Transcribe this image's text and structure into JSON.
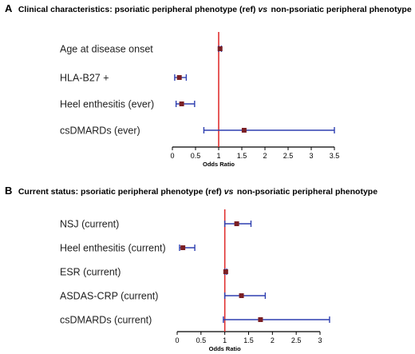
{
  "chart_data": [
    {
      "type": "forest",
      "panel_letter": "A",
      "title_prefix": "Clinical characteristics: psoriatic peripheral phenotype (ref) ",
      "title_vs": "vs",
      "title_suffix": " non-psoriatic peripheral phenotype",
      "xlabel": "Odds Ratio",
      "xlim": [
        0,
        3.5
      ],
      "ticks": [
        "0",
        "0.5",
        "1",
        "1.5",
        "2",
        "2.5",
        "3",
        "3.5"
      ],
      "reference_line": 1,
      "rows": [
        {
          "label": "Age at disease onset",
          "or": 1.03,
          "low": 1.0,
          "high": 1.06
        },
        {
          "label": "HLA-B27 +",
          "or": 0.15,
          "low": 0.05,
          "high": 0.3
        },
        {
          "label": "Heel enthesitis (ever)",
          "or": 0.2,
          "low": 0.08,
          "high": 0.48
        },
        {
          "label": "csDMARDs (ever)",
          "or": 1.55,
          "low": 0.68,
          "high": 3.5
        }
      ]
    },
    {
      "type": "forest",
      "panel_letter": "B",
      "title_prefix": "Current status: psoriatic peripheral phenotype (ref) ",
      "title_vs": "vs",
      "title_suffix": " non-psoriatic peripheral phenotype",
      "xlabel": "Odds Ratio",
      "xlim": [
        0,
        3
      ],
      "ticks": [
        "0",
        "0.5",
        "1",
        "1.5",
        "2",
        "2.5",
        "3"
      ],
      "reference_line": 1,
      "rows": [
        {
          "label": "NSJ (current)",
          "or": 1.25,
          "low": 1.0,
          "high": 1.55
        },
        {
          "label": "Heel enthesitis (current)",
          "or": 0.12,
          "low": 0.05,
          "high": 0.37
        },
        {
          "label": "ESR (current)",
          "or": 1.02,
          "low": 1.0,
          "high": 1.04
        },
        {
          "label": "ASDAS-CRP (current)",
          "or": 1.35,
          "low": 1.0,
          "high": 1.85
        },
        {
          "label": "csDMARDs (current)",
          "or": 1.75,
          "low": 0.97,
          "high": 3.2
        }
      ]
    }
  ],
  "colors": {
    "reference_line": "#e03030",
    "ci_line": "#2e3fb0",
    "marker": "#7a1f24",
    "axis": "#000000"
  }
}
